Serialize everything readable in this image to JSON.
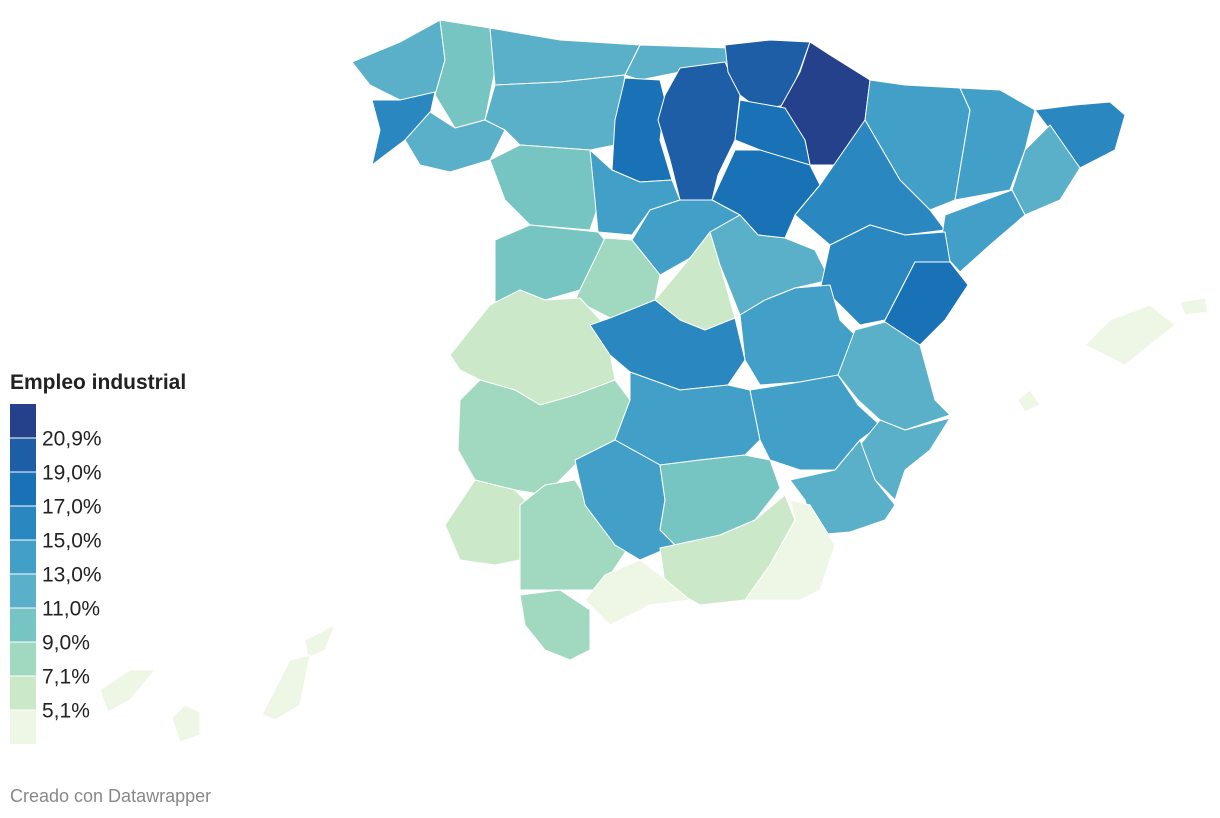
{
  "legend": {
    "title": "Empleo industrial",
    "colors": [
      "#26418c",
      "#1d5ea6",
      "#1a72b6",
      "#2a87c0",
      "#429fc8",
      "#5ab0c8",
      "#77c5c3",
      "#a1d9c0",
      "#cbe9c9",
      "#eef7e5"
    ],
    "labels": [
      "20,9%",
      "19,0%",
      "17,0%",
      "15,0%",
      "13,0%",
      "11,0%",
      "9,0%",
      "7,1%",
      "5,1%"
    ]
  },
  "footer": "Creado con Datawrapper"
}
